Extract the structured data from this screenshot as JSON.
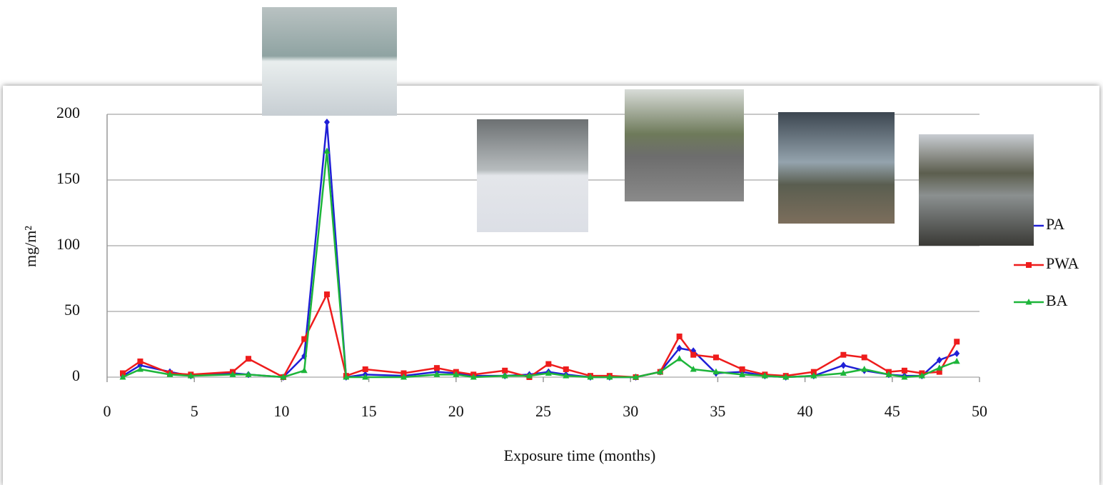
{
  "chart_data": {
    "type": "line",
    "x": [
      0.9,
      1.9,
      3.6,
      4.8,
      7.2,
      8.1,
      10.1,
      11.3,
      12.6,
      13.7,
      14.8,
      17,
      18.9,
      20,
      21,
      22.8,
      24.2,
      25.3,
      26.3,
      27.7,
      28.8,
      30.3,
      31.7,
      32.8,
      33.6,
      34.9,
      36.4,
      37.7,
      38.9,
      40.5,
      42.2,
      43.4,
      44.8,
      45.7,
      46.7,
      47.7,
      48.7
    ],
    "series": [
      {
        "name": "PA",
        "color": "#1f1fd6",
        "marker": "diamond",
        "values": [
          1,
          9,
          4,
          1,
          3,
          2,
          0,
          16,
          194,
          0,
          2,
          1,
          4,
          3,
          1,
          1,
          2,
          4,
          2,
          0,
          0,
          0,
          4,
          22,
          20,
          3,
          4,
          1,
          0,
          1,
          9,
          5,
          2,
          1,
          1,
          13,
          18
        ]
      },
      {
        "name": "PWA",
        "color": "#ee1c1c",
        "marker": "square",
        "values": [
          3,
          12,
          3,
          2,
          4,
          14,
          0,
          29,
          63,
          1,
          6,
          3,
          7,
          4,
          2,
          5,
          0,
          10,
          6,
          1,
          1,
          0,
          4,
          31,
          17,
          15,
          6,
          2,
          1,
          4,
          17,
          15,
          4,
          5,
          3,
          4,
          27
        ]
      },
      {
        "name": "BA",
        "color": "#1db53a",
        "marker": "triangle",
        "values": [
          0,
          6,
          2,
          1,
          2,
          2,
          0,
          5,
          172,
          0,
          0,
          0,
          2,
          2,
          0,
          1,
          1,
          3,
          1,
          0,
          0,
          0,
          4,
          14,
          6,
          4,
          2,
          1,
          0,
          1,
          3,
          6,
          2,
          0,
          1,
          7,
          12
        ]
      }
    ],
    "xlabel": "Exposure time (months)",
    "ylabel": "mg/m²",
    "xlim": [
      0,
      50
    ],
    "xticks": [
      0,
      5,
      10,
      15,
      20,
      25,
      30,
      35,
      40,
      45,
      50
    ],
    "ylim": [
      0,
      200
    ],
    "yticks": [
      0,
      50,
      100,
      150,
      200
    ],
    "grid": true,
    "legend": "right"
  }
}
